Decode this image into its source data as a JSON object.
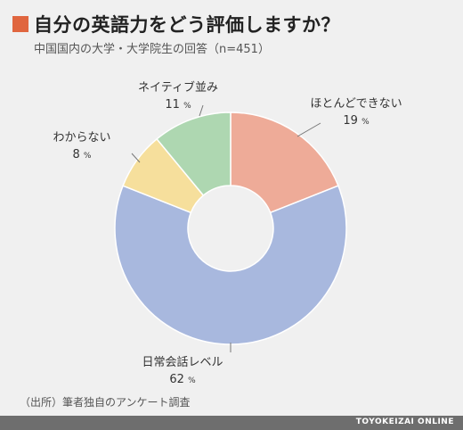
{
  "header": {
    "title": "自分の英語力をどう評価しますか？",
    "subtitle": "中国国内の大学・大学院生の回答（n=451）",
    "accent_color": "#e0663f"
  },
  "chart_data": {
    "type": "pie",
    "donut": true,
    "title": "自分の英語力をどう評価しますか？",
    "slices": [
      {
        "label": "ほとんどできない",
        "value": 19,
        "unit": "%",
        "color": "#eeab98"
      },
      {
        "label": "日常会話レベル",
        "value": 62,
        "unit": "%",
        "color": "#a8b8de"
      },
      {
        "label": "わからない",
        "value": 8,
        "unit": "%",
        "color": "#f6df9c"
      },
      {
        "label": "ネイティブ並み",
        "value": 11,
        "unit": "%",
        "color": "#aed7b1"
      }
    ]
  },
  "source": "（出所）筆者独自のアンケート調査",
  "footer": {
    "brand": "TOYOKEIZAI ONLINE",
    "bar_color": "#6e6e6e"
  }
}
